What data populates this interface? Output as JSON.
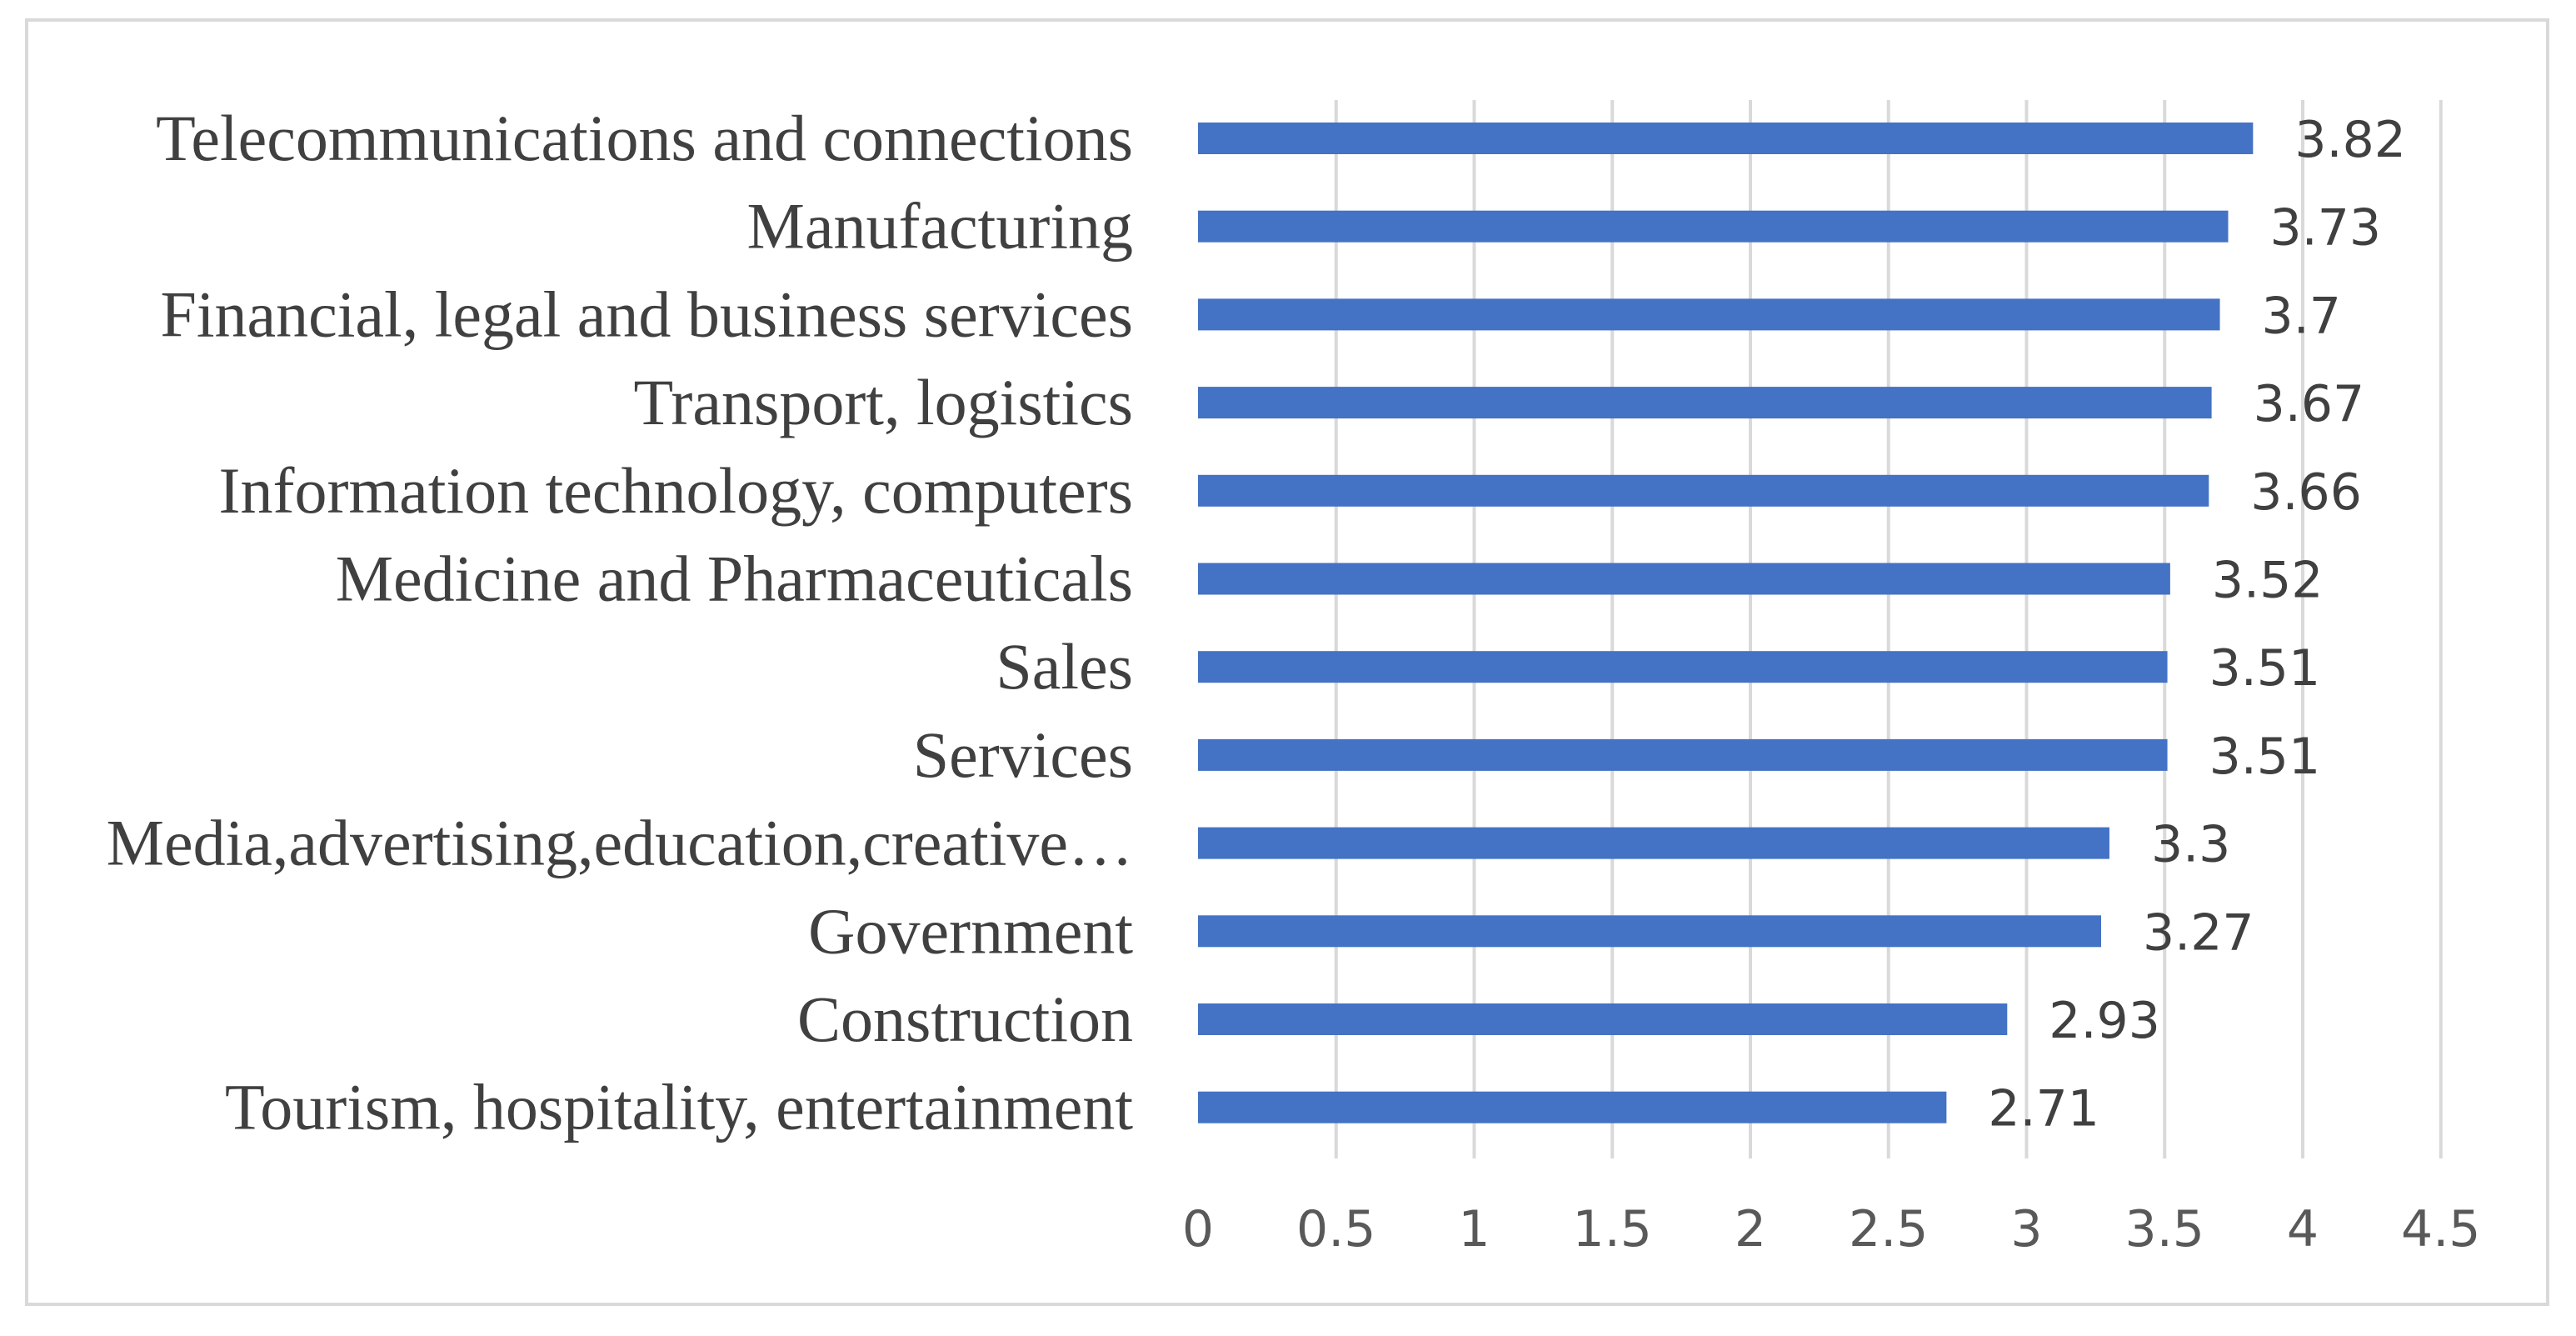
{
  "chart_data": {
    "type": "bar",
    "orientation": "horizontal",
    "title": "",
    "xlabel": "",
    "ylabel": "",
    "categories": [
      "Telecommunications and connections",
      "Manufacturing",
      "Financial, legal and business services",
      "Transport, logistics",
      "Information technology, computers",
      "Medicine and Pharmaceuticals",
      "Sales",
      "Services",
      "Media,advertising,education,creative…",
      "Government",
      "Construction",
      "Tourism, hospitality, entertainment"
    ],
    "values": [
      3.82,
      3.73,
      3.7,
      3.67,
      3.66,
      3.52,
      3.51,
      3.51,
      3.3,
      3.27,
      2.93,
      2.71
    ],
    "value_labels": [
      "3.82",
      "3.73",
      "3.7",
      "3.67",
      "3.66",
      "3.52",
      "3.51",
      "3.51",
      "3.3",
      "3.27",
      "2.93",
      "2.71"
    ],
    "xlim": [
      0,
      4.5
    ],
    "ticks": [
      0,
      0.5,
      1,
      1.5,
      2,
      2.5,
      3,
      3.5,
      4,
      4.5
    ],
    "tick_labels": [
      "0",
      "0.5",
      "1",
      "1.5",
      "2",
      "2.5",
      "3",
      "3.5",
      "4",
      "4.5"
    ],
    "grid": true,
    "legend": "none",
    "bar_color": "#4472C4",
    "grid_color": "#D9D9D9",
    "text_color": "#404040"
  }
}
